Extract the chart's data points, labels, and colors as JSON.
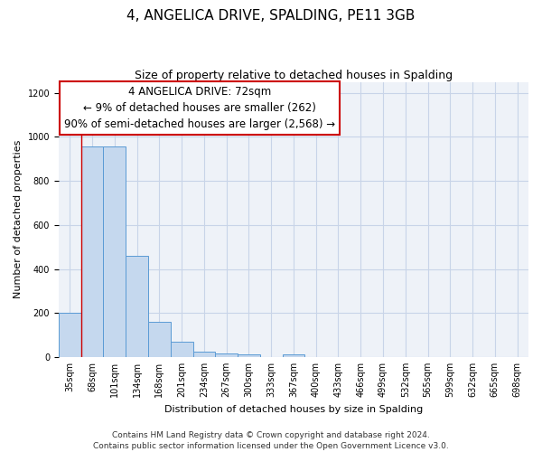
{
  "title": "4, ANGELICA DRIVE, SPALDING, PE11 3GB",
  "subtitle": "Size of property relative to detached houses in Spalding",
  "xlabel": "Distribution of detached houses by size in Spalding",
  "ylabel": "Number of detached properties",
  "bin_labels": [
    "35sqm",
    "68sqm",
    "101sqm",
    "134sqm",
    "168sqm",
    "201sqm",
    "234sqm",
    "267sqm",
    "300sqm",
    "333sqm",
    "367sqm",
    "400sqm",
    "433sqm",
    "466sqm",
    "499sqm",
    "532sqm",
    "565sqm",
    "599sqm",
    "632sqm",
    "665sqm",
    "698sqm"
  ],
  "bar_heights": [
    200,
    955,
    955,
    460,
    160,
    70,
    25,
    18,
    10,
    0,
    10,
    0,
    0,
    0,
    0,
    0,
    0,
    0,
    0,
    0,
    0
  ],
  "bar_color": "#c5d8ee",
  "bar_edge_color": "#5b9bd5",
  "annotation_box_text": "4 ANGELICA DRIVE: 72sqm\n← 9% of detached houses are smaller (262)\n90% of semi-detached houses are larger (2,568) →",
  "annotation_box_color": "#ffffff",
  "annotation_box_edge_color": "#cc0000",
  "vline_color": "#cc0000",
  "vline_x": 1.0,
  "ylim": [
    0,
    1250
  ],
  "yticks": [
    0,
    200,
    400,
    600,
    800,
    1000,
    1200
  ],
  "footer_line1": "Contains HM Land Registry data © Crown copyright and database right 2024.",
  "footer_line2": "Contains public sector information licensed under the Open Government Licence v3.0.",
  "background_color": "#ffffff",
  "grid_color": "#c8d4e8",
  "plot_bg_color": "#eef2f8",
  "title_fontsize": 11,
  "subtitle_fontsize": 9,
  "annotation_fontsize": 8.5,
  "axis_label_fontsize": 8,
  "tick_fontsize": 7,
  "footer_fontsize": 6.5
}
